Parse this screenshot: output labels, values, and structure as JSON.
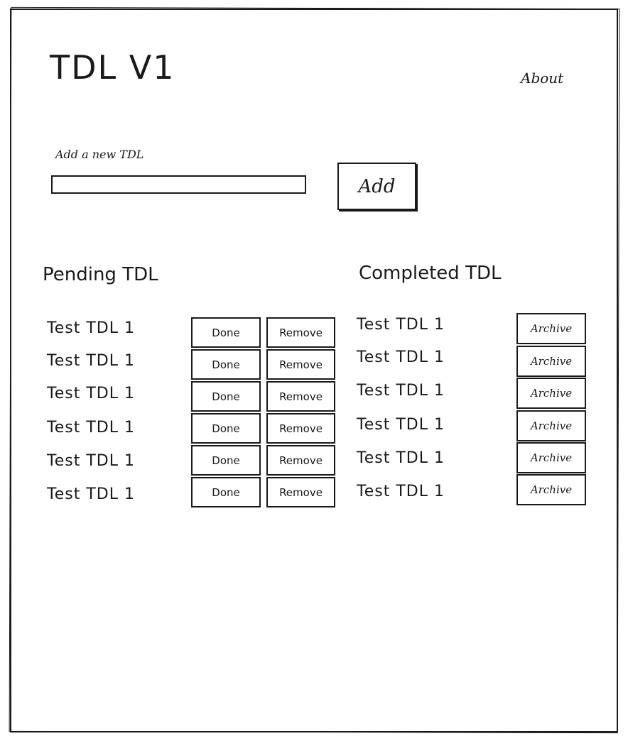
{
  "header": {
    "title": "TDL V1",
    "about_label": "About"
  },
  "new_tdl": {
    "label": "Add a new TDL",
    "input_value": "",
    "add_label": "Add"
  },
  "pending": {
    "title": "Pending TDL",
    "done_label": "Done",
    "remove_label": "Remove",
    "items": [
      {
        "text": "Test TDL 1"
      },
      {
        "text": "Test TDL 1"
      },
      {
        "text": "Test TDL 1"
      },
      {
        "text": "Test TDL 1"
      },
      {
        "text": "Test TDL 1"
      },
      {
        "text": "Test TDL 1"
      }
    ]
  },
  "completed": {
    "title": "Completed TDL",
    "archive_label": "Archive",
    "items": [
      {
        "text": "Test TDL 1"
      },
      {
        "text": "Test TDL 1"
      },
      {
        "text": "Test TDL 1"
      },
      {
        "text": "Test TDL 1"
      },
      {
        "text": "Test TDL 1"
      },
      {
        "text": "Test TDL 1"
      }
    ]
  }
}
